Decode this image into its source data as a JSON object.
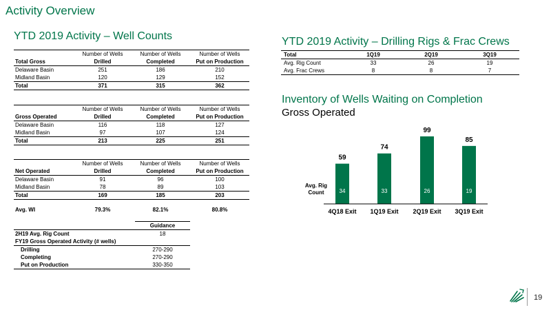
{
  "page": {
    "title": "Activity Overview",
    "page_number": "19"
  },
  "well_counts": {
    "heading": "YTD 2019 Activity – Well Counts",
    "col_top": "Number of Wells",
    "col_bottoms": [
      "Drilled",
      "Completed",
      "Put on Production"
    ],
    "sections": [
      {
        "label": "Total Gross",
        "rows": [
          {
            "name": "Delaware Basin",
            "values": [
              "251",
              "186",
              "210"
            ]
          },
          {
            "name": "Midland Basin",
            "values": [
              "120",
              "129",
              "152"
            ]
          }
        ],
        "total": {
          "name": "Total",
          "values": [
            "371",
            "315",
            "362"
          ]
        }
      },
      {
        "label": "Gross Operated",
        "rows": [
          {
            "name": "Delaware Basin",
            "values": [
              "116",
              "118",
              "127"
            ]
          },
          {
            "name": "Midland Basin",
            "values": [
              "97",
              "107",
              "124"
            ]
          }
        ],
        "total": {
          "name": "Total",
          "values": [
            "213",
            "225",
            "251"
          ]
        }
      },
      {
        "label": "Net Operated",
        "rows": [
          {
            "name": "Delaware Basin",
            "values": [
              "91",
              "96",
              "100"
            ]
          },
          {
            "name": "Midland Basin",
            "values": [
              "78",
              "89",
              "103"
            ]
          }
        ],
        "total": {
          "name": "Total",
          "values": [
            "169",
            "185",
            "203"
          ]
        }
      }
    ],
    "avg_wi": {
      "label": "Avg. WI",
      "values": [
        "79.3%",
        "82.1%",
        "80.8%"
      ]
    }
  },
  "guidance": {
    "header": "Guidance",
    "rig_count": {
      "label": "2H19 Avg. Rig Count",
      "value": "18"
    },
    "activity_label": "FY19 Gross Operated Activity (# wells)",
    "rows": [
      {
        "label": "Drilling",
        "value": "270-290"
      },
      {
        "label": "Completing",
        "value": "270-290"
      },
      {
        "label": "Put on Production",
        "value": "330-350"
      }
    ]
  },
  "rigs": {
    "heading": "YTD 2019 Activity – Drilling Rigs & Frac Crews",
    "header": [
      "Total",
      "1Q19",
      "2Q19",
      "3Q19"
    ],
    "rows": [
      {
        "name": "Avg. Rig Count",
        "values": [
          "33",
          "26",
          "19"
        ]
      },
      {
        "name": "Avg. Frac Crews",
        "values": [
          "8",
          "8",
          "7"
        ]
      }
    ]
  },
  "inventory": {
    "heading": "Inventory of Wells Waiting on Completion",
    "subheading": "Gross Operated"
  },
  "chart_data": {
    "type": "bar",
    "categories": [
      "4Q18 Exit",
      "1Q19 Exit",
      "2Q19 Exit",
      "3Q19 Exit"
    ],
    "values": [
      59,
      74,
      99,
      85
    ],
    "inner_label": "Avg. Rig Count",
    "inner_label_lines": [
      "Avg. Rig",
      "Count"
    ],
    "inner_values": [
      "34",
      "33",
      "26",
      "19"
    ],
    "ylim": [
      0,
      100
    ],
    "bar_color": "#00754a",
    "grid": false
  },
  "colors": {
    "accent": "#00754a"
  }
}
